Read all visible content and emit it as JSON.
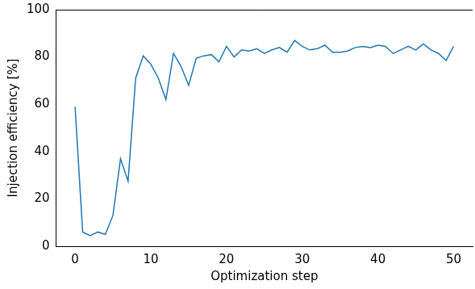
{
  "chart_data": {
    "type": "line",
    "x_label": "Optimization step",
    "y_label": "Injection efficiency [%]",
    "x": [
      0,
      1,
      2,
      3,
      4,
      5,
      6,
      7,
      8,
      9,
      10,
      11,
      12,
      13,
      14,
      15,
      16,
      17,
      18,
      19,
      20,
      21,
      22,
      23,
      24,
      25,
      26,
      27,
      28,
      29,
      30,
      31,
      32,
      33,
      34,
      35,
      36,
      37,
      38,
      39,
      40,
      41,
      42,
      43,
      44,
      45,
      46,
      47,
      48,
      49,
      50
    ],
    "values": [
      59,
      6,
      4.5,
      6,
      5,
      13,
      37,
      27.5,
      71,
      80.5,
      77,
      71,
      62,
      81.5,
      76,
      68,
      79.5,
      80.5,
      81,
      78,
      84.5,
      80,
      83,
      82.5,
      83.5,
      81.5,
      83,
      84,
      82,
      87,
      84.5,
      83,
      83.5,
      85,
      82,
      82,
      82.5,
      84,
      84.5,
      84,
      85,
      84.5,
      81.5,
      83,
      84.5,
      83,
      85.5,
      83,
      81.5,
      78.5,
      84.5
    ],
    "color": "#1f77b4",
    "xlim": [
      -2.5,
      52.5
    ],
    "xticks": [
      0,
      10,
      20,
      30,
      40,
      50
    ],
    "ylim": [
      0,
      100
    ],
    "yticks": [
      0,
      20,
      40,
      60,
      80,
      100
    ],
    "grid": false
  }
}
